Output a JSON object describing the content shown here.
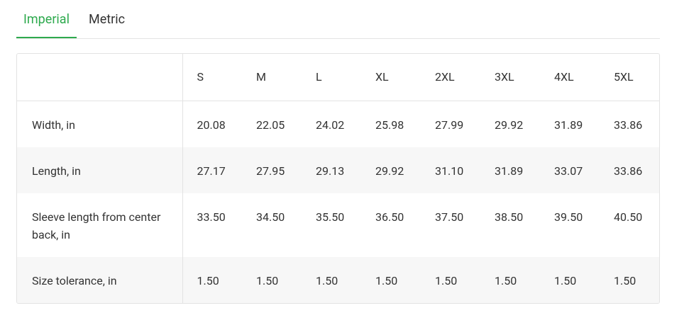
{
  "tabs": [
    "Imperial",
    "Metric"
  ],
  "table": {
    "columns": [
      "S",
      "M",
      "L",
      "XL",
      "2XL",
      "3XL",
      "4XL",
      "5XL"
    ],
    "rows": [
      [
        "Width, in",
        "20.08",
        "22.05",
        "24.02",
        "25.98",
        "27.99",
        "29.92",
        "31.89",
        "33.86"
      ],
      [
        "Length, in",
        "27.17",
        "27.95",
        "29.13",
        "29.92",
        "31.10",
        "31.89",
        "33.07",
        "33.86"
      ],
      [
        "Sleeve length from center back, in",
        "33.50",
        "34.50",
        "35.50",
        "36.50",
        "37.50",
        "38.50",
        "39.50",
        "40.50"
      ],
      [
        "Size tolerance, in",
        "1.50",
        "1.50",
        "1.50",
        "1.50",
        "1.50",
        "1.50",
        "1.50",
        "1.50"
      ]
    ]
  }
}
